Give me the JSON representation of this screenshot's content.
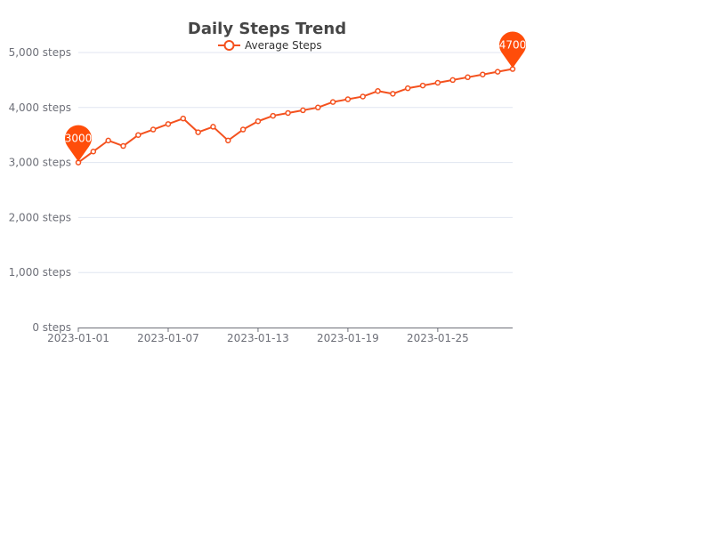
{
  "chart_data": {
    "type": "line",
    "title": "Daily Steps Trend",
    "xlabel": "",
    "ylabel": "",
    "legend": {
      "position": "top-center",
      "entries": [
        "Average Steps"
      ]
    },
    "grid": true,
    "ylim": [
      0,
      5000
    ],
    "y_ticks": [
      0,
      1000,
      2000,
      3000,
      4000,
      5000
    ],
    "y_tick_labels": [
      "0 steps",
      "1,000 steps",
      "2,000 steps",
      "3,000 steps",
      "4,000 steps",
      "5,000 steps"
    ],
    "x_tick_labels": [
      "2023-01-01",
      "2023-01-07",
      "2023-01-13",
      "2023-01-19",
      "2023-01-25"
    ],
    "x_tick_every": 6,
    "x": [
      "2023-01-01",
      "2023-01-02",
      "2023-01-03",
      "2023-01-04",
      "2023-01-05",
      "2023-01-06",
      "2023-01-07",
      "2023-01-08",
      "2023-01-09",
      "2023-01-10",
      "2023-01-11",
      "2023-01-12",
      "2023-01-13",
      "2023-01-14",
      "2023-01-15",
      "2023-01-16",
      "2023-01-17",
      "2023-01-18",
      "2023-01-19",
      "2023-01-20",
      "2023-01-21",
      "2023-01-22",
      "2023-01-23",
      "2023-01-24",
      "2023-01-25",
      "2023-01-26",
      "2023-01-27",
      "2023-01-28",
      "2023-01-29",
      "2023-01-30"
    ],
    "series": [
      {
        "name": "Average Steps",
        "color": "#f4511e",
        "values": [
          3000,
          3200,
          3400,
          3300,
          3500,
          3600,
          3700,
          3800,
          3550,
          3650,
          3400,
          3600,
          3750,
          3850,
          3900,
          3950,
          4000,
          4100,
          4150,
          4200,
          4300,
          4250,
          4350,
          4400,
          4450,
          4500,
          4550,
          4600,
          4650,
          4700
        ]
      }
    ],
    "markers": [
      {
        "type": "min",
        "label": "3000",
        "index": 0,
        "color": "#ff4d0a"
      },
      {
        "type": "max",
        "label": "4700",
        "index": 29,
        "color": "#ff4d0a"
      }
    ]
  }
}
